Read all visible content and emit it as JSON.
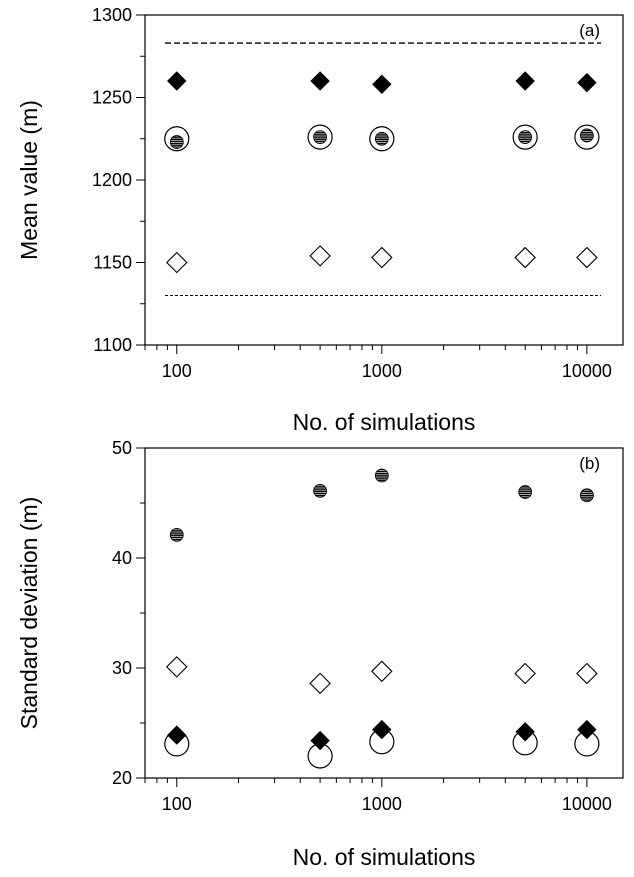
{
  "chart_data": [
    {
      "panel_label": "(a)",
      "type": "scatter",
      "xlabel": "No. of simulations",
      "ylabel": "Mean value (m)",
      "x_scale": "log",
      "xlim": [
        70,
        15000
      ],
      "ylim": [
        1100,
        1300
      ],
      "x_ticks": [
        100,
        1000,
        10000
      ],
      "x_tick_labels": [
        "100",
        "1000",
        "10000"
      ],
      "y_ticks": [
        1100,
        1150,
        1200,
        1250,
        1300
      ],
      "y_tick_labels": [
        "1100",
        "1150",
        "1200",
        "1250",
        "1300"
      ],
      "grid": false,
      "x": [
        100,
        500,
        1000,
        5000,
        10000
      ],
      "series": [
        {
          "marker": "filled-diamond",
          "values": [
            1260,
            1260,
            1258,
            1260,
            1259
          ]
        },
        {
          "marker": "open-circle-large",
          "values": [
            1225,
            1226,
            1225,
            1226,
            1226
          ]
        },
        {
          "marker": "hatched-circle",
          "values": [
            1223,
            1226,
            1225,
            1226,
            1227
          ]
        },
        {
          "marker": "open-diamond",
          "values": [
            1150,
            1154,
            1153,
            1153,
            1153
          ]
        }
      ],
      "reference_lines": [
        {
          "style": "dashed",
          "y": 1283
        },
        {
          "style": "dotted",
          "y": 1130
        }
      ]
    },
    {
      "panel_label": "(b)",
      "type": "scatter",
      "xlabel": "No. of simulations",
      "ylabel": "Standard deviation (m)",
      "x_scale": "log",
      "xlim": [
        70,
        15000
      ],
      "ylim": [
        20,
        50
      ],
      "x_ticks": [
        100,
        1000,
        10000
      ],
      "x_tick_labels": [
        "100",
        "1000",
        "10000"
      ],
      "y_ticks": [
        20,
        30,
        40,
        50
      ],
      "y_tick_labels": [
        "20",
        "30",
        "40",
        "50"
      ],
      "grid": false,
      "x": [
        100,
        500,
        1000,
        5000,
        10000
      ],
      "series": [
        {
          "marker": "hatched-circle",
          "values": [
            42.1,
            46.1,
            47.5,
            46.0,
            45.7
          ]
        },
        {
          "marker": "open-diamond",
          "values": [
            30.1,
            28.6,
            29.7,
            29.5,
            29.5
          ]
        },
        {
          "marker": "filled-diamond",
          "values": [
            23.9,
            23.4,
            24.4,
            24.2,
            24.4
          ]
        },
        {
          "marker": "open-circle-large",
          "values": [
            23.1,
            22.0,
            23.3,
            23.2,
            23.1
          ]
        }
      ]
    }
  ]
}
